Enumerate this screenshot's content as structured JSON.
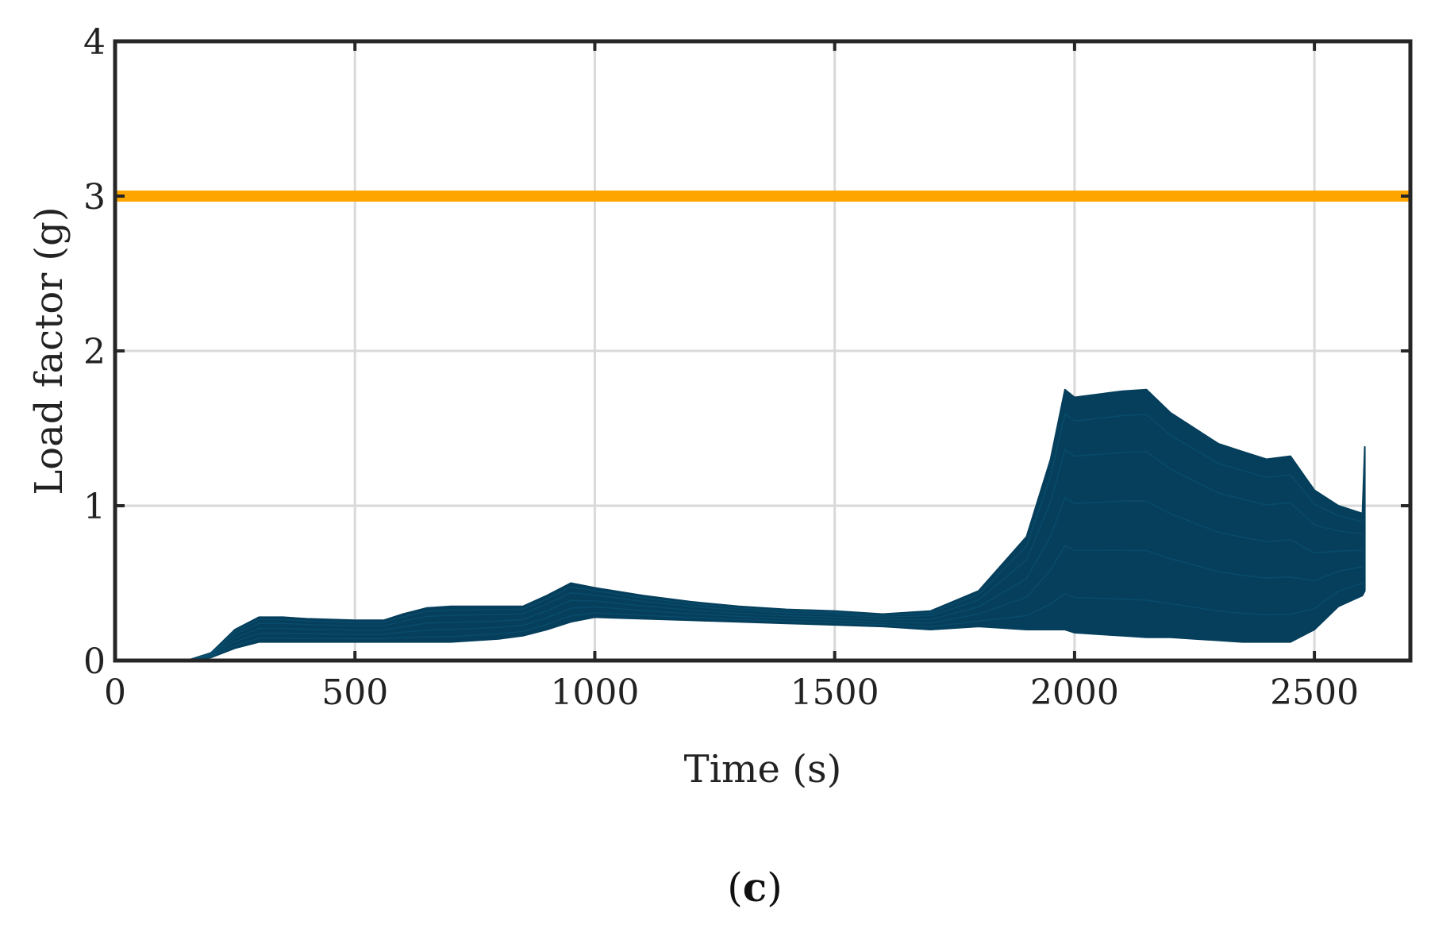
{
  "chart_data": {
    "type": "line",
    "title": "",
    "xlabel": "Time (s)",
    "ylabel": "Load factor (g)",
    "xlim": [
      0,
      2700
    ],
    "ylim": [
      0,
      4
    ],
    "xticks": [
      0,
      500,
      1000,
      1500,
      2000,
      2500
    ],
    "yticks": [
      0,
      1,
      2,
      3,
      4
    ],
    "grid": true,
    "legend": "none",
    "panel_label": {
      "open": "(",
      "letter": "c",
      "close": ")"
    },
    "colors": {
      "band": "#053f5c",
      "limit": "#ffa500",
      "grid": "#d9d9d9",
      "frame": "#262626"
    },
    "series": [
      {
        "role": "limit",
        "x": [
          0,
          2700
        ],
        "y": [
          3.0,
          3.0
        ]
      },
      {
        "role": "ensemble-upper",
        "x": [
          0,
          150,
          200,
          250,
          300,
          350,
          400,
          500,
          560,
          600,
          650,
          700,
          800,
          850,
          900,
          950,
          1000,
          1100,
          1200,
          1300,
          1400,
          1500,
          1600,
          1700,
          1800,
          1900,
          1950,
          1980,
          2000,
          2050,
          2100,
          2150,
          2200,
          2250,
          2300,
          2350,
          2400,
          2450,
          2500,
          2550,
          2600,
          2605
        ],
        "y": [
          0.0,
          0.0,
          0.05,
          0.2,
          0.28,
          0.28,
          0.27,
          0.26,
          0.26,
          0.3,
          0.34,
          0.35,
          0.35,
          0.35,
          0.42,
          0.5,
          0.47,
          0.42,
          0.38,
          0.35,
          0.33,
          0.32,
          0.3,
          0.32,
          0.45,
          0.8,
          1.3,
          1.75,
          1.7,
          1.72,
          1.74,
          1.75,
          1.6,
          1.5,
          1.4,
          1.35,
          1.3,
          1.32,
          1.1,
          1.0,
          0.95,
          1.38
        ]
      },
      {
        "role": "ensemble-lower",
        "x": [
          0,
          150,
          200,
          250,
          300,
          350,
          400,
          500,
          560,
          600,
          650,
          700,
          800,
          850,
          900,
          950,
          1000,
          1100,
          1200,
          1300,
          1400,
          1500,
          1600,
          1700,
          1800,
          1900,
          1950,
          1980,
          2000,
          2050,
          2100,
          2150,
          2200,
          2250,
          2300,
          2350,
          2400,
          2450,
          2500,
          2550,
          2600,
          2605
        ],
        "y": [
          0.0,
          0.0,
          0.02,
          0.08,
          0.12,
          0.12,
          0.12,
          0.12,
          0.12,
          0.12,
          0.12,
          0.12,
          0.14,
          0.16,
          0.2,
          0.25,
          0.28,
          0.27,
          0.26,
          0.25,
          0.24,
          0.23,
          0.22,
          0.2,
          0.22,
          0.2,
          0.2,
          0.2,
          0.18,
          0.17,
          0.16,
          0.15,
          0.15,
          0.14,
          0.13,
          0.12,
          0.12,
          0.12,
          0.2,
          0.35,
          0.42,
          0.45
        ]
      }
    ]
  }
}
